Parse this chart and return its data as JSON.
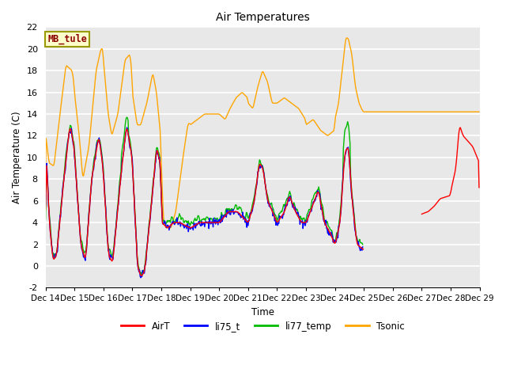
{
  "title": "Air Temperatures",
  "ylabel": "Air Temperature (C)",
  "xlabel": "Time",
  "annotation": "MB_tule",
  "ylim": [
    -2,
    22
  ],
  "bg_color": "#e8e8e8",
  "fig_color": "#ffffff",
  "series_colors": {
    "AirT": "#ff0000",
    "li75_t": "#0000ff",
    "li77_temp": "#00bb00",
    "Tsonic": "#ffa500"
  },
  "xtick_labels": [
    "Dec 14",
    "Dec 15",
    "Dec 16",
    "Dec 17",
    "Dec 18",
    "Dec 19",
    "Dec 20",
    "Dec 21",
    "Dec 22",
    "Dec 23",
    "Dec 24",
    "Dec 25",
    "Dec 26",
    "Dec 27",
    "Dec 28",
    "Dec 29"
  ],
  "ytick_values": [
    -2,
    0,
    2,
    4,
    6,
    8,
    10,
    12,
    14,
    16,
    18,
    20,
    22
  ],
  "n_days": 15,
  "pts_per_day": 48
}
